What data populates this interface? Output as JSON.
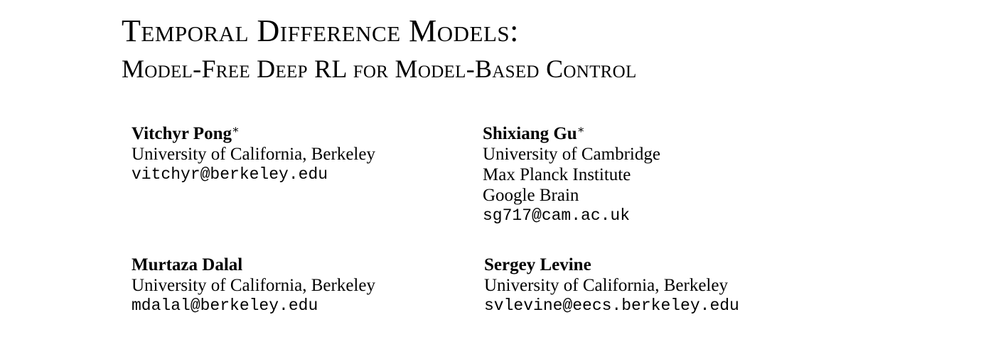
{
  "title": {
    "line1": "Temporal Difference Models:",
    "line2": "Model-Free Deep RL for Model-Based Control"
  },
  "authors": [
    {
      "name": "Vitchyr Pong",
      "mark": "∗",
      "affiliations": [
        "University of California, Berkeley"
      ],
      "email": "vitchyr@berkeley.edu"
    },
    {
      "name": "Shixiang Gu",
      "mark": "∗",
      "affiliations": [
        "University of Cambridge",
        "Max Planck Institute",
        "Google Brain"
      ],
      "email": "sg717@cam.ac.uk"
    },
    {
      "name": "Murtaza Dalal",
      "mark": "",
      "affiliations": [
        "University of California, Berkeley"
      ],
      "email": "mdalal@berkeley.edu"
    },
    {
      "name": "Sergey Levine",
      "mark": "",
      "affiliations": [
        "University of California, Berkeley"
      ],
      "email": "svlevine@eecs.berkeley.edu"
    }
  ]
}
